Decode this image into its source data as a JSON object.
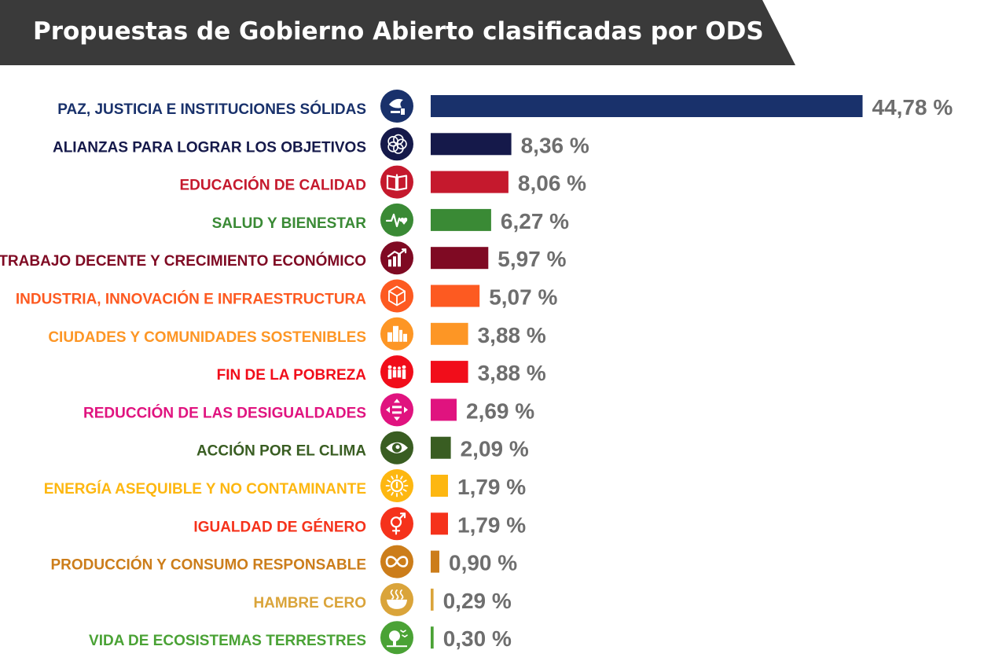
{
  "header": {
    "title": "Propuestas de Gobierno Abierto clasificadas por ODS"
  },
  "chart_data": {
    "type": "bar",
    "orientation": "horizontal",
    "title": "Propuestas de Gobierno Abierto clasificadas por ODS",
    "xlabel": "",
    "ylabel": "",
    "categories": [
      "PAZ, JUSTICIA E INSTITUCIONES SÓLIDAS",
      "ALIANZAS PARA LOGRAR LOS OBJETIVOS",
      "EDUCACIÓN DE CALIDAD",
      "SALUD Y BIENESTAR",
      "TRABAJO DECENTE Y CRECIMIENTO ECONÓMICO",
      "INDUSTRIA, INNOVACIÓN E INFRAESTRUCTURA",
      "CIUDADES Y COMUNIDADES SOSTENIBLES",
      "FIN DE LA POBREZA",
      "REDUCCIÓN DE LAS DESIGUALDADES",
      "ACCIÓN POR EL CLIMA",
      "ENERGÍA ASEQUIBLE Y NO CONTAMINANTE",
      "IGUALDAD DE GÉNERO",
      "PRODUCCIÓN Y CONSUMO RESPONSABLE",
      "HAMBRE CERO",
      "VIDA DE ECOSISTEMAS TERRESTRES"
    ],
    "values": [
      44.78,
      8.36,
      8.06,
      6.27,
      5.97,
      5.07,
      3.88,
      3.88,
      2.69,
      2.09,
      1.79,
      1.79,
      0.9,
      0.29,
      0.3
    ],
    "value_labels": [
      "44,78 %",
      "8,36 %",
      "8,06 %",
      "6,27 %",
      "5,97 %",
      "5,07 %",
      "3,88 %",
      "3,88 %",
      "2,69 %",
      "2,09 %",
      "1,79 %",
      "1,79 %",
      "0,90 %",
      "0,29 %",
      "0,30 %"
    ],
    "colors": [
      "#19316b",
      "#15194a",
      "#c5192d",
      "#3a8a35",
      "#7f0a23",
      "#fd5a21",
      "#fd9625",
      "#f10d1a",
      "#e0137f",
      "#395d22",
      "#fdb711",
      "#f5321b",
      "#cc7d1a",
      "#daa43a",
      "#4aa235"
    ],
    "icons": [
      "dove-gavel-icon",
      "partnership-ring-icon",
      "book-icon",
      "heartbeat-icon",
      "growth-chart-icon",
      "cubes-icon",
      "city-buildings-icon",
      "family-people-icon",
      "equality-arrows-icon",
      "eye-globe-icon",
      "sun-power-icon",
      "gender-symbol-icon",
      "infinity-loop-icon",
      "steaming-bowl-icon",
      "tree-birds-icon"
    ],
    "grid": false,
    "legend": "none"
  }
}
